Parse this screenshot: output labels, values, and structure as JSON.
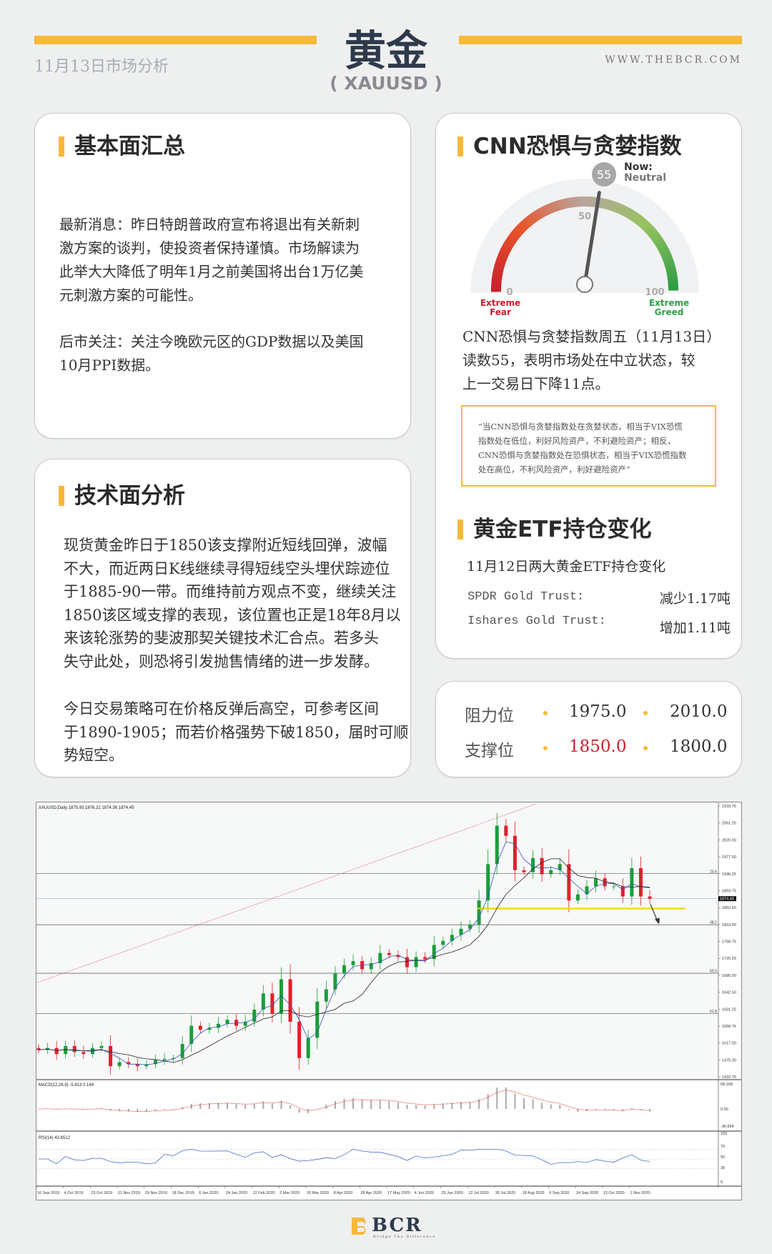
{
  "header": {
    "title": "黄金",
    "symbol": "( XAUUSD )",
    "date": "11月13日市场分析",
    "website": "WWW.THEBCR.COM",
    "accent": "#f8b93a"
  },
  "fundamentals": {
    "title": "基本面汇总",
    "paragraphs": [
      [
        "最新消息：昨日特朗普政府宣布将退出有关新刺",
        "激方案的谈判，使投资者保持谨慎。市场解读为",
        "此举大大降低了明年1月之前美国将出台1万亿美",
        "元刺激方案的可能性。"
      ],
      [
        "后市关注：关注今晚欧元区的GDP数据以及美国",
        "10月PPI数据。"
      ]
    ]
  },
  "technical": {
    "title": "技术面分析",
    "paragraphs": [
      [
        "现货黄金昨日于1850该支撑附近短线回弹，波幅",
        "不大，而近两日K线继续寻得短线空头埋伏踪迹位",
        "于1885-90一带。而维持前方观点不变，继续关注",
        "1850该区域支撑的表现，该位置也正是18年8月以",
        "来该轮涨势的斐波那契关键技术汇合点。若多头",
        "失守此处，则恐将引发抛售情绪的进一步发酵。"
      ],
      [
        "今日交易策略可在价格反弹后高空，可参考区间",
        "于1890-1905；而若价格强势下破1850，届时可顺",
        "势短空。"
      ]
    ]
  },
  "cnn": {
    "title": "CNN恐惧与贪婪指数",
    "gauge": {
      "value": 55,
      "now_label": "Now:",
      "state": "Neutral",
      "tick_0": "0",
      "tick_50": "50",
      "tick_100": "100",
      "fear_label": [
        "Extreme",
        "Fear"
      ],
      "greed_label": [
        "Extreme",
        "Greed"
      ],
      "fear_color": "#c8202e",
      "greed_color": "#2f9e44"
    },
    "text": [
      "CNN恐惧与贪婪指数周五（11月13日）",
      "读数55，表明市场处在中立状态，较",
      "上一交易日下降11点。"
    ],
    "quote": [
      "“当CNN恐惧与贪婪指数处在贪婪状态，相当于VIX恐慌",
      "指数处在低位，利好风险资产，不利避险资产；相反，",
      "CNN恐惧与贪婪指数处在恐惧状态，相当于VIX恐慌指数",
      "处在高位，不利风险资产，利好避险资产”"
    ]
  },
  "etf": {
    "title": "黄金ETF持仓变化",
    "subtitle": "11月12日两大黄金ETF持仓变化",
    "rows": [
      {
        "name": "SPDR Gold Trust:",
        "change": "减少1.17吨"
      },
      {
        "name": "Ishares Gold Trust:",
        "change": "增加1.11吨"
      }
    ]
  },
  "levels": {
    "resistance_label": "阻力位",
    "resistance": [
      "1975.0",
      "2010.0"
    ],
    "support_label": "支撑位",
    "support": [
      "1850.0",
      "1800.0"
    ],
    "highlight_color": "#c8202e"
  },
  "chart_data": {
    "type": "candlestick",
    "header": "XAUUSD,Daily  1875.93 1876.21 1874.36 1874.45",
    "current_price": "1874.45",
    "y_ticks": [
      "2103.75",
      "2061.25",
      "2020.00",
      "1977.50",
      "1936.25",
      "1893.75",
      "1852.50",
      "1810.00",
      "1768.75",
      "1726.25",
      "1685.00",
      "1642.50",
      "1601.25",
      "1558.75",
      "1517.50",
      "1475.00",
      "1433.75"
    ],
    "ylim": [
      1433.75,
      2103.75
    ],
    "x_ticks": [
      "16 Sep 2019",
      "4 Oct 2019",
      "23 Oct 2019",
      "11 Nov 2019",
      "29 Nov 2019",
      "18 Dec 2019",
      "6 Jan 2020",
      "24 Jan 2020",
      "12 Feb 2020",
      "2 Mar 2020",
      "20 Mar 2020",
      "8 Apr 2020",
      "28 Apr 2020",
      "17 May 2020",
      "4 Jun 2020",
      "23 Jun 2020",
      "12 Jul 2020",
      "30 Jul 2020",
      "18 Aug 2020",
      "6 Sep 2020",
      "24 Sep 2020",
      "13 Oct 2020",
      "1 Nov 2020"
    ],
    "closes": [
      1500,
      1505,
      1490,
      1510,
      1495,
      1490,
      1505,
      1510,
      1460,
      1470,
      1465,
      1460,
      1465,
      1475,
      1478,
      1480,
      1515,
      1560,
      1550,
      1555,
      1565,
      1575,
      1560,
      1570,
      1600,
      1640,
      1590,
      1675,
      1570,
      1480,
      1530,
      1620,
      1650,
      1690,
      1710,
      1720,
      1700,
      1715,
      1740,
      1735,
      1730,
      1705,
      1730,
      1725,
      1760,
      1770,
      1785,
      1800,
      1810,
      1870,
      1960,
      2055,
      2030,
      1945,
      1940,
      1975,
      1935,
      1945,
      1960,
      1870,
      1885,
      1905,
      1925,
      1905,
      1905,
      1880,
      1950,
      1880,
      1874.45
    ],
    "fib_levels": [
      {
        "label": "23.6",
        "price": 1936.25
      },
      {
        "label": "38.2",
        "price": 1810
      },
      {
        "label": "50.0",
        "price": 1690
      },
      {
        "label": "61.8",
        "price": 1590
      }
    ],
    "support_line": 1850,
    "macd": {
      "label": "MACD(12,26,9) -5.813 0.149",
      "ticks": [
        "68.168",
        "0.00",
        "-36.654"
      ]
    },
    "rsi": {
      "label": "RSI(14) 43.6512",
      "ticks": [
        "100",
        "70",
        "50",
        "30",
        "0"
      ]
    }
  },
  "footer": {
    "logo": "BCR",
    "tagline": "Bridge The Difference"
  }
}
